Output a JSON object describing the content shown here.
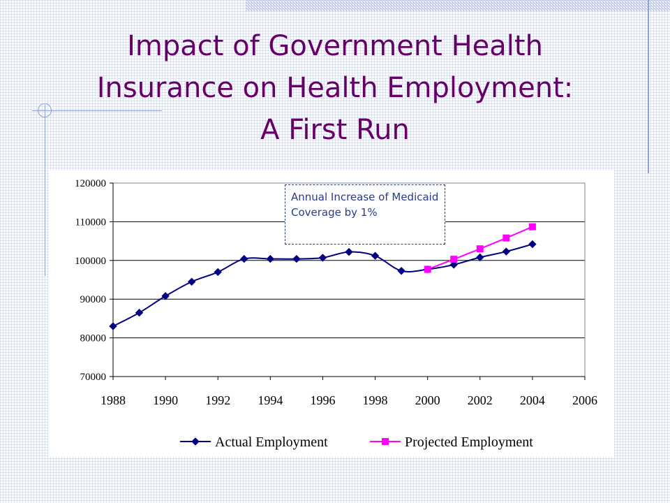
{
  "slide": {
    "title_lines": [
      "Impact of Government Health",
      "Insurance on Health Employment:",
      "A First Run"
    ]
  },
  "colors": {
    "title": "#660066",
    "actual_series": "#000080",
    "projected_series": "#FF00FF",
    "annotation_text": "#2a3a8a",
    "decoration": "#8da0d0"
  },
  "chart_data": {
    "type": "line",
    "title": "",
    "xlabel": "",
    "ylabel": "",
    "xlim": [
      1988,
      2006
    ],
    "ylim": [
      70000,
      120000
    ],
    "x_ticks": [
      "1988",
      "1990",
      "1992",
      "1994",
      "1996",
      "1998",
      "2000",
      "2002",
      "2004",
      "2006"
    ],
    "y_ticks": [
      "70000",
      "80000",
      "90000",
      "100000",
      "110000",
      "120000"
    ],
    "grid": "horizontal",
    "legend_position": "bottom",
    "annotation": "Annual Increase of Medicaid Coverage by 1%",
    "series": [
      {
        "name": "Actual Employment",
        "color": "#000080",
        "marker": "diamond",
        "smooth": true,
        "x": [
          1988,
          1989,
          1990,
          1991,
          1992,
          1993,
          1994,
          1995,
          1996,
          1997,
          1998,
          1999,
          2000,
          2001,
          2002,
          2003,
          2004
        ],
        "y": [
          83000,
          86500,
          90800,
          94500,
          97000,
          100400,
          100400,
          100400,
          100700,
          102200,
          101200,
          97300,
          97700,
          98900,
          100800,
          102300,
          104200
        ]
      },
      {
        "name": "Projected Employment",
        "color": "#FF00FF",
        "marker": "square",
        "smooth": false,
        "x": [
          2000,
          2001,
          2002,
          2003,
          2004
        ],
        "y": [
          97700,
          100300,
          103000,
          105800,
          108700
        ]
      }
    ]
  }
}
